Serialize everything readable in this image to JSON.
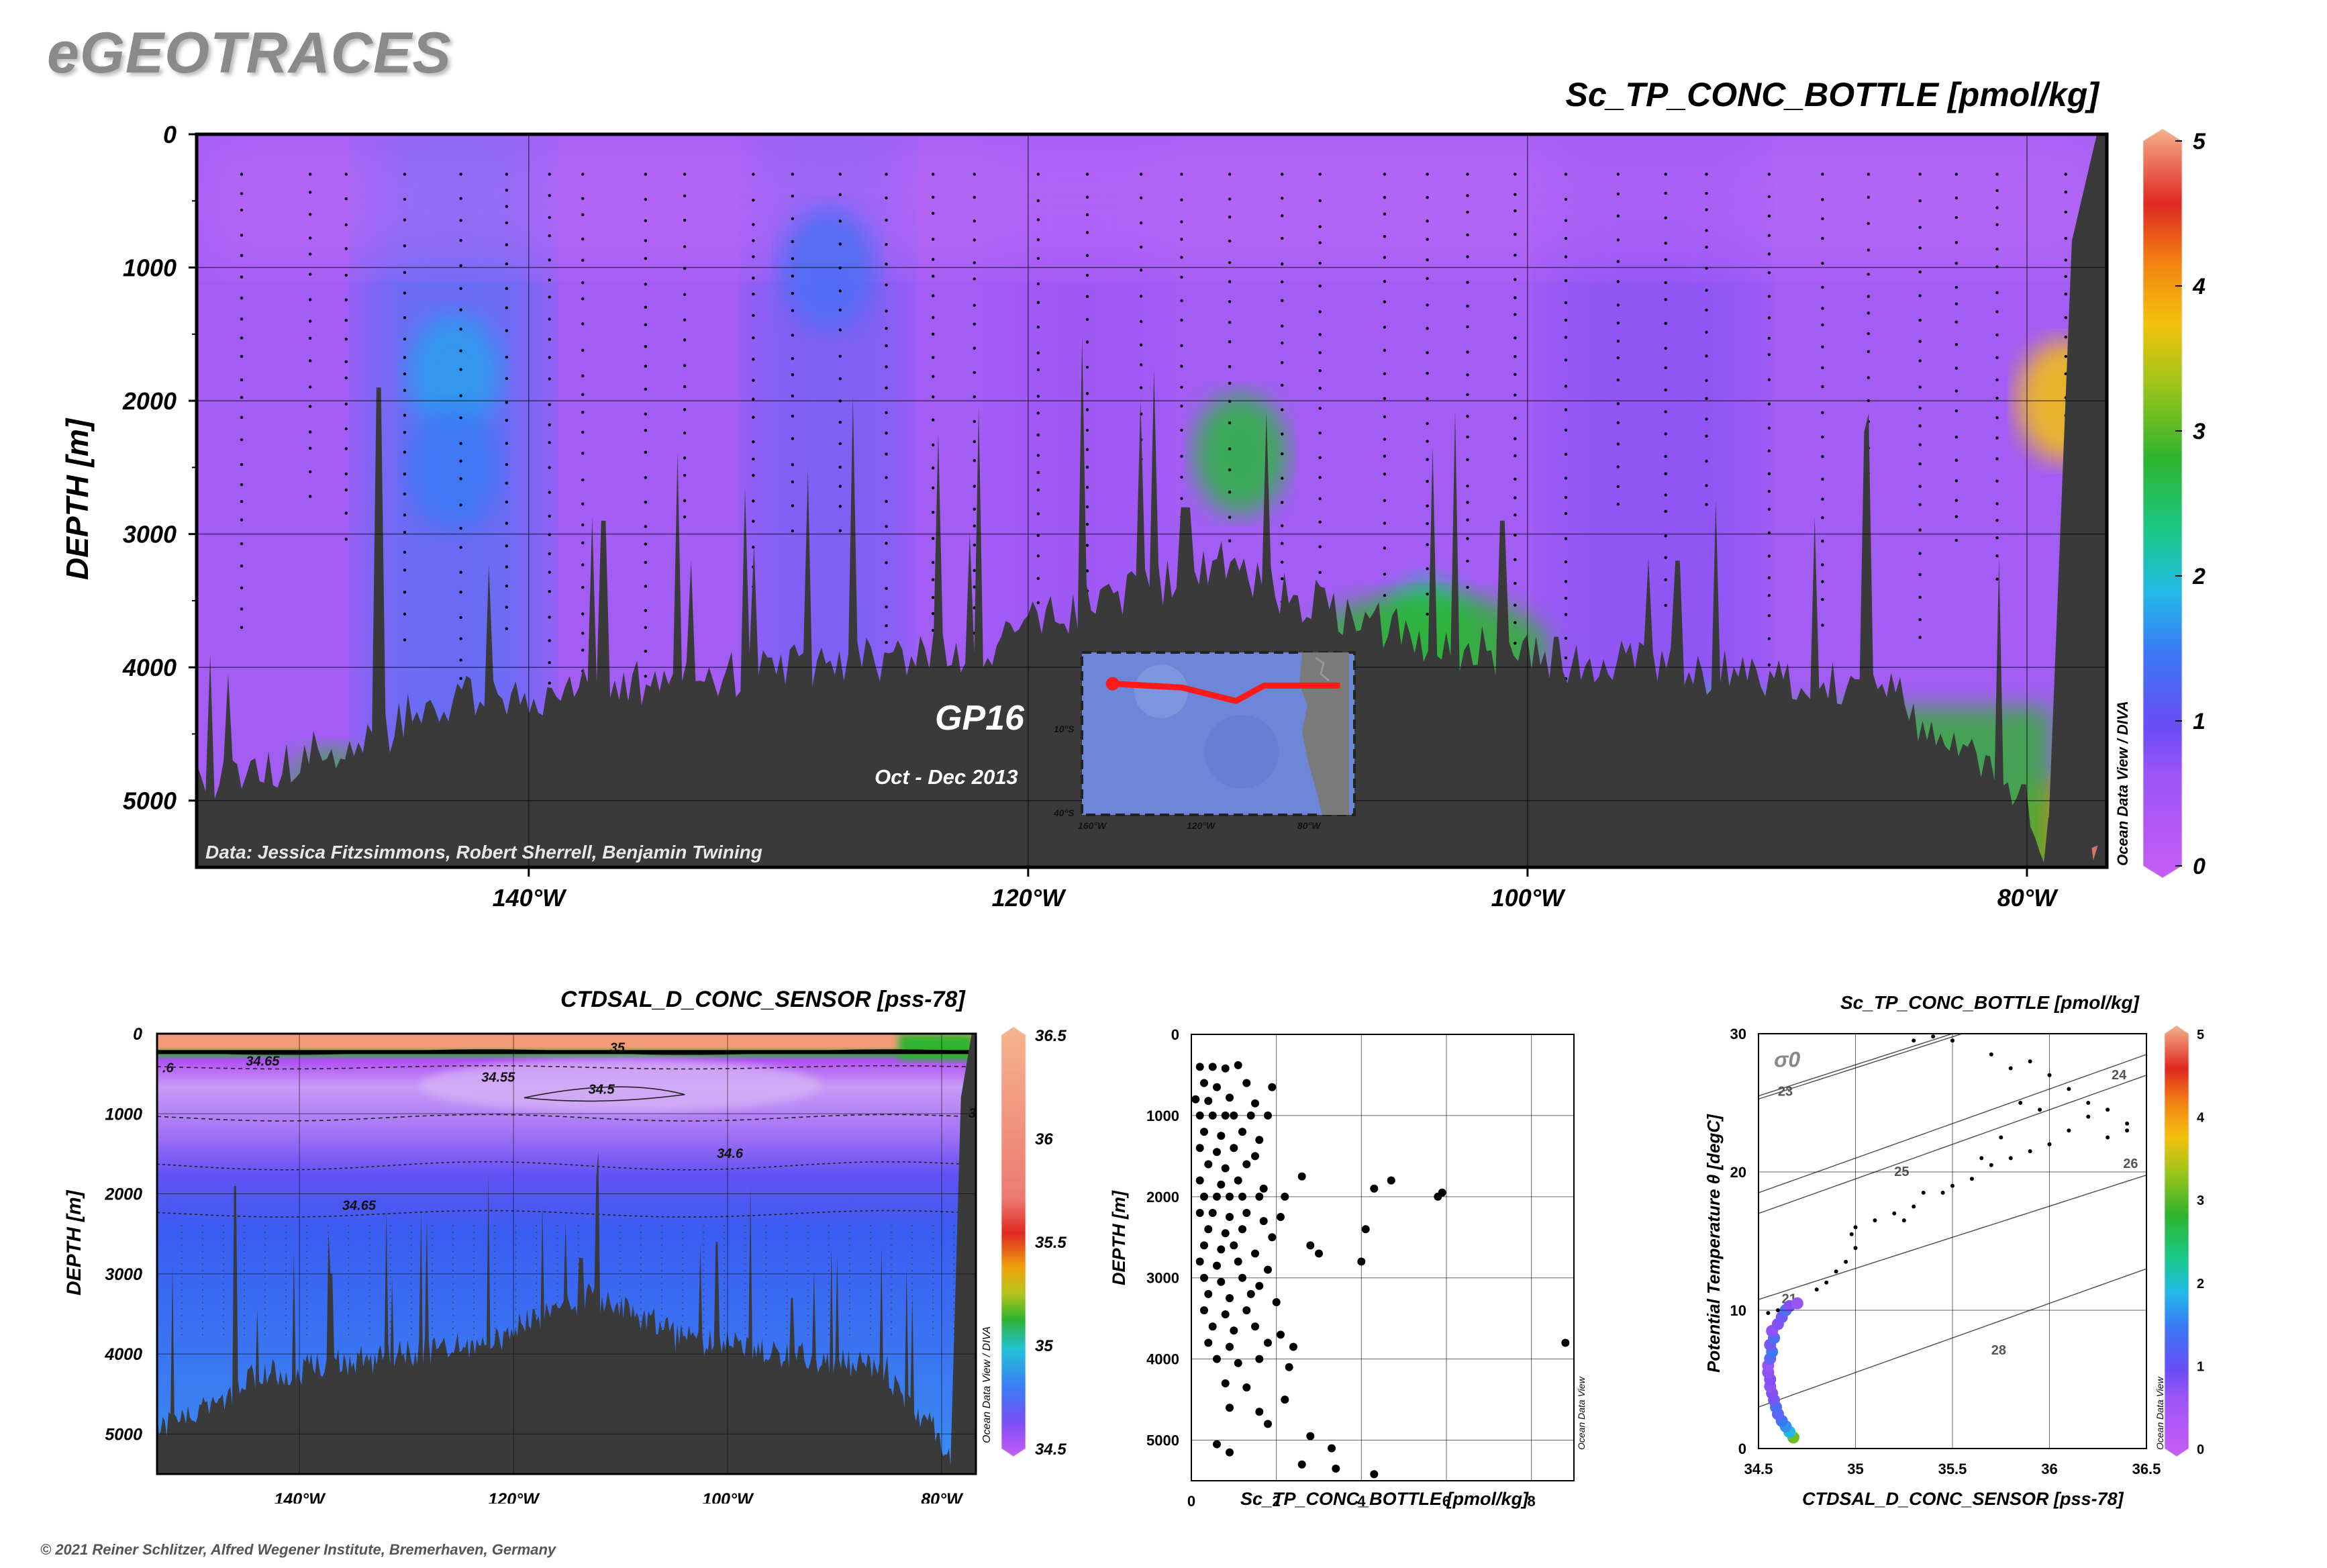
{
  "app": {
    "logo": "eGEOTRACES",
    "copyright": "© 2021 Reiner Schlitzer, Alfred Wegener Institute, Bremerhaven, Germany",
    "odv_diva_label": "Ocean Data View / DIVA",
    "odv_label": "Ocean Data View"
  },
  "colors": {
    "background": "#ffffff",
    "bathymetry": "#3a3a3a",
    "section_base": "#a35df5",
    "map_track": "#ff1a1a",
    "scatter_points": "#000000"
  },
  "chart_data": [
    {
      "id": "main_section",
      "type": "heatmap",
      "title": "Sc_TP_CONC_BOTTLE [pmol/kg]",
      "ylabel": "DEPTH [m]",
      "xlabel": "",
      "x_ticks": [
        "140°W",
        "120°W",
        "100°W",
        "80°W"
      ],
      "x_tick_values": [
        -140,
        -120,
        -100,
        -80
      ],
      "xlim": [
        -153.3,
        -76.8
      ],
      "y_ticks": [
        "0",
        "1000",
        "2000",
        "3000",
        "4000",
        "5000"
      ],
      "y_tick_values": [
        0,
        1000,
        2000,
        3000,
        4000,
        5000
      ],
      "ylim": [
        0,
        5500
      ],
      "grid": true,
      "colorbar": {
        "range": [
          0,
          5
        ],
        "ticks": [
          "0",
          "1",
          "2",
          "3",
          "4",
          "5"
        ]
      },
      "cruise_label": "GP16",
      "cruise_dates": "Oct - Dec 2013",
      "credits": "Data: Jessica Fitzsimmons, Robert Sherrell, Benjamin Twining",
      "features": [
        {
          "lon": -143.0,
          "depth": 1800,
          "value": 1.3
        },
        {
          "lon": -143.0,
          "depth": 2500,
          "value": 1.0
        },
        {
          "lon": -128.0,
          "depth": 1000,
          "value": 0.9
        },
        {
          "lon": -111.5,
          "depth": 2400,
          "value": 2.4
        },
        {
          "lon": -104.0,
          "depth": 3800,
          "value": 2.0
        },
        {
          "lon": -78.5,
          "depth": 2000,
          "value": 3.5
        },
        {
          "lon": -92.0,
          "depth": 4600,
          "value": 1.8
        },
        {
          "lon": -78.8,
          "depth": 5300,
          "value": 4.0
        }
      ],
      "inset_map": {
        "lat_ticks": [
          "10°S",
          "40°S"
        ],
        "lon_ticks": [
          "160°W",
          "120°W",
          "80°W"
        ],
        "track": [
          {
            "lon": -152,
            "lat": -10.5
          },
          {
            "lon": -130,
            "lat": -11.5
          },
          {
            "lon": -113,
            "lat": -15.0
          },
          {
            "lon": -104,
            "lat": -11.0
          },
          {
            "lon": -80,
            "lat": -11.0
          }
        ]
      }
    },
    {
      "id": "salinity_section",
      "type": "heatmap",
      "title": "CTDSAL_D_CONC_SENSOR [pss-78]",
      "ylabel": "DEPTH [m]",
      "x_ticks": [
        "140°W",
        "120°W",
        "100°W",
        "80°W"
      ],
      "x_tick_values": [
        -140,
        -120,
        -100,
        -80
      ],
      "xlim": [
        -153.3,
        -76.8
      ],
      "y_ticks": [
        "0",
        "1000",
        "2000",
        "3000",
        "4000",
        "5000"
      ],
      "y_tick_values": [
        0,
        1000,
        2000,
        3000,
        4000,
        5000
      ],
      "ylim": [
        0,
        5500
      ],
      "grid": true,
      "colorbar": {
        "range": [
          34.5,
          36.5
        ],
        "ticks": [
          "34.5",
          "35",
          "35.5",
          "36",
          "36.5"
        ]
      },
      "contour_labels": [
        {
          "text": "34.65",
          "lon": -145,
          "depth": 400
        },
        {
          "text": "34.55",
          "lon": -123,
          "depth": 600
        },
        {
          "text": "34.5",
          "lon": -113,
          "depth": 750
        },
        {
          "text": "35",
          "lon": -111,
          "depth": 230
        },
        {
          "text": "34.6",
          "lon": -101,
          "depth": 1550
        },
        {
          "text": "34.65",
          "lon": -136,
          "depth": 2200
        },
        {
          "text": ".6",
          "lon": -152.8,
          "depth": 480
        },
        {
          "text": "3",
          "lon": -77.5,
          "depth": 1050
        }
      ]
    },
    {
      "id": "profile_scatter",
      "type": "scatter",
      "title": "",
      "xlabel": "Sc_TP_CONC_BOTTLE [pmol/kg]",
      "ylabel": "DEPTH [m]",
      "xlim": [
        0,
        9
      ],
      "ylim": [
        0,
        5500
      ],
      "x_ticks": [
        "0",
        "2",
        "4",
        "6",
        "8"
      ],
      "x_tick_values": [
        0,
        2,
        4,
        6,
        8
      ],
      "y_ticks": [
        "0",
        "1000",
        "2000",
        "3000",
        "4000",
        "5000"
      ],
      "y_tick_values": [
        0,
        1000,
        2000,
        3000,
        4000,
        5000
      ],
      "grid": true,
      "points": [
        [
          0.2,
          400
        ],
        [
          0.5,
          400
        ],
        [
          0.8,
          420
        ],
        [
          1.1,
          380
        ],
        [
          0.3,
          600
        ],
        [
          0.6,
          650
        ],
        [
          1.3,
          600
        ],
        [
          1.9,
          650
        ],
        [
          0.1,
          800
        ],
        [
          0.4,
          820
        ],
        [
          0.9,
          780
        ],
        [
          1.5,
          850
        ],
        [
          0.2,
          1000
        ],
        [
          0.5,
          1000
        ],
        [
          0.8,
          1000
        ],
        [
          1.0,
          1000
        ],
        [
          1.4,
          1000
        ],
        [
          1.8,
          1000
        ],
        [
          0.3,
          1200
        ],
        [
          0.7,
          1250
        ],
        [
          1.2,
          1200
        ],
        [
          1.6,
          1300
        ],
        [
          0.2,
          1400
        ],
        [
          0.6,
          1450
        ],
        [
          1.0,
          1400
        ],
        [
          1.5,
          1500
        ],
        [
          0.4,
          1600
        ],
        [
          0.8,
          1650
        ],
        [
          1.3,
          1600
        ],
        [
          2.6,
          1750
        ],
        [
          0.2,
          1800
        ],
        [
          0.7,
          1850
        ],
        [
          1.1,
          1800
        ],
        [
          1.7,
          1900
        ],
        [
          0.3,
          2000
        ],
        [
          0.6,
          2000
        ],
        [
          0.9,
          2000
        ],
        [
          1.2,
          2000
        ],
        [
          1.6,
          2000
        ],
        [
          2.2,
          2000
        ],
        [
          5.8,
          2000
        ],
        [
          5.9,
          1950
        ],
        [
          4.7,
          1800
        ],
        [
          4.3,
          1900
        ],
        [
          0.2,
          2200
        ],
        [
          0.5,
          2200
        ],
        [
          0.9,
          2250
        ],
        [
          1.3,
          2200
        ],
        [
          1.7,
          2300
        ],
        [
          2.1,
          2250
        ],
        [
          0.4,
          2400
        ],
        [
          0.8,
          2450
        ],
        [
          1.2,
          2400
        ],
        [
          1.9,
          2500
        ],
        [
          4.1,
          2400
        ],
        [
          0.3,
          2600
        ],
        [
          0.7,
          2650
        ],
        [
          1.0,
          2600
        ],
        [
          1.5,
          2700
        ],
        [
          2.8,
          2600
        ],
        [
          3.0,
          2700
        ],
        [
          0.2,
          2800
        ],
        [
          0.6,
          2850
        ],
        [
          1.1,
          2800
        ],
        [
          1.8,
          2900
        ],
        [
          4.0,
          2800
        ],
        [
          0.3,
          3000
        ],
        [
          0.7,
          3050
        ],
        [
          1.2,
          3000
        ],
        [
          1.6,
          3100
        ],
        [
          0.4,
          3200
        ],
        [
          0.9,
          3250
        ],
        [
          1.4,
          3200
        ],
        [
          2.0,
          3300
        ],
        [
          0.3,
          3400
        ],
        [
          0.8,
          3450
        ],
        [
          1.3,
          3400
        ],
        [
          0.5,
          3600
        ],
        [
          1.0,
          3650
        ],
        [
          1.5,
          3600
        ],
        [
          2.1,
          3700
        ],
        [
          0.4,
          3800
        ],
        [
          0.9,
          3850
        ],
        [
          1.8,
          3800
        ],
        [
          2.4,
          3850
        ],
        [
          8.8,
          3800
        ],
        [
          0.6,
          4000
        ],
        [
          1.1,
          4050
        ],
        [
          1.6,
          4000
        ],
        [
          2.3,
          4100
        ],
        [
          0.8,
          4300
        ],
        [
          1.3,
          4350
        ],
        [
          0.9,
          4600
        ],
        [
          1.6,
          4650
        ],
        [
          2.2,
          4500
        ],
        [
          1.8,
          4800
        ],
        [
          2.8,
          4950
        ],
        [
          3.3,
          5100
        ],
        [
          0.6,
          5050
        ],
        [
          0.9,
          5150
        ],
        [
          2.6,
          5300
        ],
        [
          3.4,
          5350
        ],
        [
          4.3,
          5420
        ]
      ]
    },
    {
      "id": "ts_diagram",
      "type": "scatter",
      "title": "Sc_TP_CONC_BOTTLE [pmol/kg]",
      "xlabel": "CTDSAL_D_CONC_SENSOR [pss-78]",
      "ylabel": "Potential Temperature θ [degC]",
      "xlim": [
        34.5,
        36.5
      ],
      "ylim": [
        0,
        30
      ],
      "x_ticks": [
        "34.5",
        "35",
        "35.5",
        "36",
        "36.5"
      ],
      "x_tick_values": [
        34.5,
        35,
        35.5,
        36,
        36.5
      ],
      "y_ticks": [
        "0",
        "10",
        "20",
        "30"
      ],
      "y_tick_values": [
        0,
        10,
        20,
        30
      ],
      "grid": true,
      "sigma_label": "σ0",
      "isopycnals": [
        "21",
        "23",
        "24",
        "25",
        "26",
        "28"
      ],
      "colorbar": {
        "range": [
          0,
          5
        ],
        "ticks": [
          "0",
          "1",
          "2",
          "3",
          "4",
          "5"
        ]
      },
      "points": [
        [
          34.68,
          0.8,
          2.8
        ],
        [
          34.66,
          1.2,
          1.5
        ],
        [
          34.64,
          1.6,
          1.2
        ],
        [
          34.62,
          2.0,
          1.0
        ],
        [
          34.6,
          2.5,
          0.8
        ],
        [
          34.59,
          3.0,
          0.9
        ],
        [
          34.58,
          3.5,
          0.7
        ],
        [
          34.57,
          4.0,
          0.6
        ],
        [
          34.56,
          4.5,
          0.5
        ],
        [
          34.56,
          5.0,
          0.6
        ],
        [
          34.55,
          5.5,
          0.5
        ],
        [
          34.55,
          6.0,
          0.4
        ],
        [
          34.56,
          6.5,
          0.8
        ],
        [
          34.57,
          7.0,
          1.0
        ],
        [
          34.56,
          7.5,
          0.7
        ],
        [
          34.58,
          8.0,
          0.9
        ],
        [
          34.57,
          8.5,
          0.5
        ],
        [
          34.6,
          9.0,
          0.6
        ],
        [
          34.62,
          9.5,
          0.7
        ],
        [
          34.64,
          10.0,
          0.9
        ],
        [
          34.66,
          10.3,
          0.6
        ],
        [
          34.7,
          10.5,
          0.4
        ],
        [
          34.6,
          10.0,
          0.3
        ],
        [
          34.55,
          9.8,
          0.3
        ],
        [
          34.8,
          11.5,
          0.3
        ],
        [
          34.85,
          12.0,
          0.3
        ],
        [
          34.9,
          12.8,
          0.3
        ],
        [
          34.95,
          13.5,
          0.3
        ],
        [
          35.0,
          14.5,
          0.3
        ],
        [
          34.98,
          15.5,
          0.3
        ],
        [
          35.0,
          16.0,
          0.3
        ],
        [
          35.1,
          16.5,
          0.3
        ],
        [
          35.2,
          17.0,
          0.3
        ],
        [
          35.3,
          17.5,
          0.3
        ],
        [
          35.35,
          18.5,
          0.3
        ],
        [
          35.5,
          19.0,
          0.3
        ],
        [
          35.6,
          19.5,
          0.3
        ],
        [
          35.7,
          20.5,
          0.3
        ],
        [
          35.8,
          21.0,
          0.3
        ],
        [
          35.9,
          21.5,
          0.3
        ],
        [
          36.0,
          22.0,
          0.3
        ],
        [
          36.1,
          23.0,
          0.3
        ],
        [
          36.2,
          24.0,
          0.3
        ],
        [
          36.3,
          24.5,
          0.3
        ],
        [
          36.4,
          23.5,
          0.3
        ],
        [
          36.1,
          26.0,
          0.3
        ],
        [
          36.0,
          27.0,
          0.3
        ],
        [
          35.9,
          28.0,
          0.3
        ],
        [
          35.8,
          27.5,
          0.3
        ],
        [
          35.7,
          28.5,
          0.3
        ],
        [
          35.5,
          29.5,
          0.3
        ],
        [
          35.4,
          29.8,
          0.3
        ],
        [
          35.3,
          29.5,
          0.3
        ],
        [
          36.2,
          25.0,
          0.3
        ],
        [
          36.3,
          22.5,
          0.3
        ],
        [
          36.4,
          23.0,
          0.3
        ],
        [
          35.85,
          25.0,
          0.3
        ],
        [
          35.95,
          24.5,
          0.3
        ],
        [
          35.75,
          22.5,
          0.3
        ],
        [
          35.65,
          21.0,
          0.3
        ],
        [
          35.45,
          18.5,
          0.3
        ],
        [
          35.25,
          16.5,
          0.3
        ]
      ]
    }
  ]
}
